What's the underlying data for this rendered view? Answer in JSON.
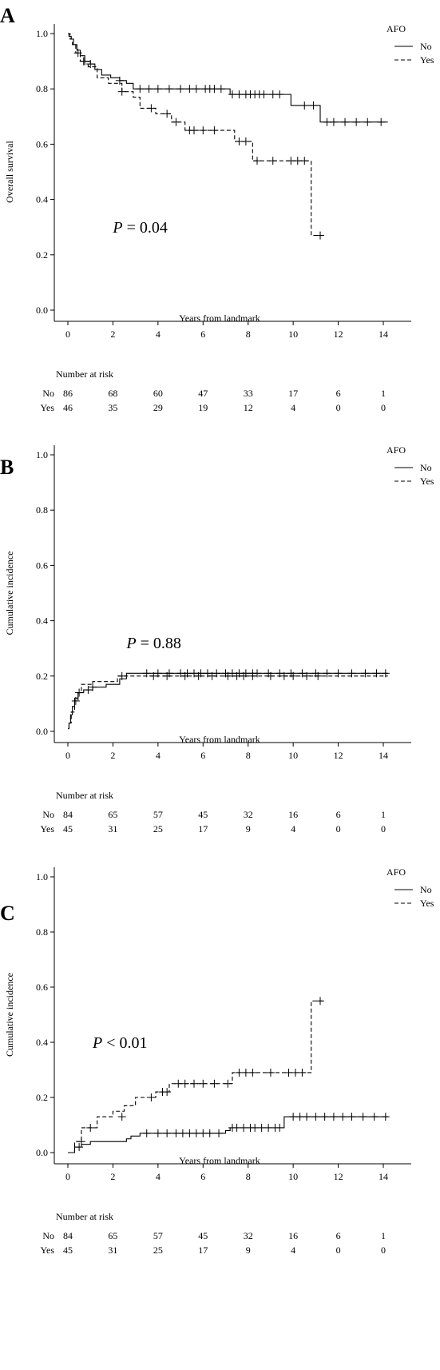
{
  "chart_data": [
    {
      "type": "line",
      "panel_label": "A",
      "ylabel": "Overall survival",
      "xlabel": "Years from landmark",
      "xlim": [
        0,
        14
      ],
      "ylim": [
        0,
        1
      ],
      "xticks": [
        "0",
        "2",
        "4",
        "6",
        "8",
        "10",
        "12",
        "14"
      ],
      "yticks": [
        "0.0",
        "0.2",
        "0.4",
        "0.6",
        "0.8",
        "1.0"
      ],
      "legend": {
        "title": "AFO",
        "position": "top-right"
      },
      "p_prefix": "P",
      "p_text": " = 0.04",
      "p_at": [
        2,
        0.28
      ],
      "series": [
        {
          "name": "No",
          "style": "solid",
          "steps": [
            [
              0,
              1.0
            ],
            [
              0.05,
              0.99
            ],
            [
              0.15,
              0.98
            ],
            [
              0.25,
              0.96
            ],
            [
              0.4,
              0.94
            ],
            [
              0.55,
              0.92
            ],
            [
              0.75,
              0.9
            ],
            [
              1.0,
              0.89
            ],
            [
              1.2,
              0.87
            ],
            [
              1.5,
              0.85
            ],
            [
              1.9,
              0.84
            ],
            [
              2.3,
              0.83
            ],
            [
              2.6,
              0.82
            ],
            [
              2.9,
              0.8
            ],
            [
              7.2,
              0.78
            ],
            [
              9.9,
              0.74
            ],
            [
              11.2,
              0.68
            ],
            [
              14.2,
              0.68
            ]
          ],
          "censors": [
            [
              0.7,
              0.9
            ],
            [
              1.0,
              0.89
            ],
            [
              2.3,
              0.83
            ],
            [
              3.2,
              0.8
            ],
            [
              3.6,
              0.8
            ],
            [
              4.0,
              0.8
            ],
            [
              4.5,
              0.8
            ],
            [
              5.0,
              0.8
            ],
            [
              5.4,
              0.8
            ],
            [
              5.7,
              0.8
            ],
            [
              6.1,
              0.8
            ],
            [
              6.3,
              0.8
            ],
            [
              6.5,
              0.8
            ],
            [
              6.8,
              0.8
            ],
            [
              7.3,
              0.78
            ],
            [
              7.6,
              0.78
            ],
            [
              7.9,
              0.78
            ],
            [
              8.1,
              0.78
            ],
            [
              8.3,
              0.78
            ],
            [
              8.5,
              0.78
            ],
            [
              8.7,
              0.78
            ],
            [
              9.1,
              0.78
            ],
            [
              9.4,
              0.78
            ],
            [
              10.5,
              0.74
            ],
            [
              10.9,
              0.74
            ],
            [
              11.5,
              0.68
            ],
            [
              11.8,
              0.68
            ],
            [
              12.3,
              0.68
            ],
            [
              12.8,
              0.68
            ],
            [
              13.3,
              0.68
            ],
            [
              13.9,
              0.68
            ]
          ]
        },
        {
          "name": "Yes",
          "style": "dashed",
          "steps": [
            [
              0,
              1.0
            ],
            [
              0.1,
              0.98
            ],
            [
              0.2,
              0.96
            ],
            [
              0.35,
              0.93
            ],
            [
              0.55,
              0.9
            ],
            [
              0.9,
              0.88
            ],
            [
              1.3,
              0.84
            ],
            [
              1.8,
              0.82
            ],
            [
              2.4,
              0.79
            ],
            [
              2.9,
              0.77
            ],
            [
              3.2,
              0.73
            ],
            [
              3.9,
              0.71
            ],
            [
              4.6,
              0.68
            ],
            [
              5.2,
              0.65
            ],
            [
              7.4,
              0.61
            ],
            [
              8.2,
              0.54
            ],
            [
              10.8,
              0.27
            ],
            [
              11.3,
              0.27
            ]
          ],
          "censors": [
            [
              0.45,
              0.93
            ],
            [
              0.75,
              0.9
            ],
            [
              2.4,
              0.79
            ],
            [
              3.7,
              0.73
            ],
            [
              4.4,
              0.71
            ],
            [
              4.8,
              0.68
            ],
            [
              5.4,
              0.65
            ],
            [
              5.6,
              0.65
            ],
            [
              6.0,
              0.65
            ],
            [
              6.5,
              0.65
            ],
            [
              7.6,
              0.61
            ],
            [
              7.9,
              0.61
            ],
            [
              8.4,
              0.54
            ],
            [
              9.1,
              0.54
            ],
            [
              9.9,
              0.54
            ],
            [
              10.2,
              0.54
            ],
            [
              10.5,
              0.54
            ],
            [
              11.2,
              0.27
            ]
          ]
        }
      ],
      "risk_table": {
        "title": "Number at risk",
        "rows": [
          {
            "group": "No",
            "counts": [
              "86",
              "68",
              "60",
              "47",
              "33",
              "17",
              "6",
              "1"
            ]
          },
          {
            "group": "Yes",
            "counts": [
              "46",
              "35",
              "29",
              "19",
              "12",
              "4",
              "0",
              "0"
            ]
          }
        ]
      }
    },
    {
      "type": "line",
      "panel_label": "B",
      "ylabel": "Cumulative incidence",
      "xlabel": "Years from landmark",
      "xlim": [
        0,
        14
      ],
      "ylim": [
        0,
        1
      ],
      "xticks": [
        "0",
        "2",
        "4",
        "6",
        "8",
        "10",
        "12",
        "14"
      ],
      "yticks": [
        "0.0",
        "0.2",
        "0.4",
        "0.6",
        "0.8",
        "1.0"
      ],
      "legend": {
        "title": "AFO",
        "position": "top-right"
      },
      "p_prefix": "P",
      "p_text": " = 0.88",
      "p_at": [
        2.6,
        0.3
      ],
      "series": [
        {
          "name": "No",
          "style": "solid",
          "steps": [
            [
              0,
              0.01
            ],
            [
              0.05,
              0.03
            ],
            [
              0.12,
              0.06
            ],
            [
              0.2,
              0.09
            ],
            [
              0.3,
              0.12
            ],
            [
              0.45,
              0.14
            ],
            [
              0.7,
              0.15
            ],
            [
              1.1,
              0.16
            ],
            [
              1.7,
              0.17
            ],
            [
              2.3,
              0.19
            ],
            [
              2.6,
              0.21
            ],
            [
              14.2,
              0.21
            ]
          ],
          "censors": [
            [
              0.5,
              0.14
            ],
            [
              0.9,
              0.15
            ],
            [
              1.1,
              0.16
            ],
            [
              3.5,
              0.21
            ],
            [
              4.0,
              0.21
            ],
            [
              4.5,
              0.21
            ],
            [
              5.0,
              0.21
            ],
            [
              5.3,
              0.21
            ],
            [
              5.6,
              0.21
            ],
            [
              5.9,
              0.21
            ],
            [
              6.2,
              0.21
            ],
            [
              6.6,
              0.21
            ],
            [
              7.0,
              0.21
            ],
            [
              7.3,
              0.21
            ],
            [
              7.6,
              0.21
            ],
            [
              7.9,
              0.21
            ],
            [
              8.2,
              0.21
            ],
            [
              8.4,
              0.21
            ],
            [
              8.9,
              0.21
            ],
            [
              9.4,
              0.21
            ],
            [
              9.9,
              0.21
            ],
            [
              10.4,
              0.21
            ],
            [
              11.0,
              0.21
            ],
            [
              11.5,
              0.21
            ],
            [
              12.0,
              0.21
            ],
            [
              12.6,
              0.21
            ],
            [
              13.2,
              0.21
            ],
            [
              13.7,
              0.21
            ],
            [
              14.1,
              0.21
            ]
          ]
        },
        {
          "name": "Yes",
          "style": "dashed",
          "steps": [
            [
              0,
              0.01
            ],
            [
              0.05,
              0.03
            ],
            [
              0.15,
              0.07
            ],
            [
              0.3,
              0.11
            ],
            [
              0.45,
              0.14
            ],
            [
              0.6,
              0.17
            ],
            [
              1.1,
              0.18
            ],
            [
              2.2,
              0.2
            ],
            [
              14.2,
              0.2
            ]
          ],
          "censors": [
            [
              0.35,
              0.11
            ],
            [
              2.4,
              0.2
            ],
            [
              3.8,
              0.2
            ],
            [
              4.4,
              0.2
            ],
            [
              5.2,
              0.2
            ],
            [
              5.8,
              0.2
            ],
            [
              6.4,
              0.2
            ],
            [
              7.1,
              0.2
            ],
            [
              7.5,
              0.2
            ],
            [
              7.8,
              0.2
            ],
            [
              8.2,
              0.2
            ],
            [
              9.0,
              0.2
            ],
            [
              9.6,
              0.2
            ],
            [
              10.0,
              0.2
            ],
            [
              10.6,
              0.2
            ],
            [
              11.1,
              0.2
            ]
          ]
        }
      ],
      "risk_table": {
        "title": "Number at risk",
        "rows": [
          {
            "group": "No",
            "counts": [
              "84",
              "65",
              "57",
              "45",
              "32",
              "16",
              "6",
              "1"
            ]
          },
          {
            "group": "Yes",
            "counts": [
              "45",
              "31",
              "25",
              "17",
              "9",
              "4",
              "0",
              "0"
            ]
          }
        ]
      }
    },
    {
      "type": "line",
      "panel_label": "C",
      "ylabel": "Cumulative incidence",
      "xlabel": "Years from landmark",
      "xlim": [
        0,
        14
      ],
      "ylim": [
        0,
        1
      ],
      "xticks": [
        "0",
        "2",
        "4",
        "6",
        "8",
        "10",
        "12",
        "14"
      ],
      "yticks": [
        "0.0",
        "0.2",
        "0.4",
        "0.6",
        "0.8",
        "1.0"
      ],
      "legend": {
        "title": "AFO",
        "position": "top-right"
      },
      "p_prefix": "P",
      "p_text": " < 0.01",
      "p_at": [
        1.1,
        0.38
      ],
      "series": [
        {
          "name": "No",
          "style": "solid",
          "steps": [
            [
              0,
              0.0
            ],
            [
              0.3,
              0.02
            ],
            [
              0.6,
              0.03
            ],
            [
              1.0,
              0.04
            ],
            [
              2.6,
              0.05
            ],
            [
              2.8,
              0.06
            ],
            [
              3.2,
              0.07
            ],
            [
              7.0,
              0.08
            ],
            [
              7.2,
              0.09
            ],
            [
              9.6,
              0.13
            ],
            [
              14.2,
              0.13
            ]
          ],
          "censors": [
            [
              0.5,
              0.02
            ],
            [
              3.5,
              0.07
            ],
            [
              4.0,
              0.07
            ],
            [
              4.4,
              0.07
            ],
            [
              4.8,
              0.07
            ],
            [
              5.1,
              0.07
            ],
            [
              5.4,
              0.07
            ],
            [
              5.7,
              0.07
            ],
            [
              6.0,
              0.07
            ],
            [
              6.3,
              0.07
            ],
            [
              6.7,
              0.07
            ],
            [
              7.3,
              0.09
            ],
            [
              7.5,
              0.09
            ],
            [
              7.8,
              0.09
            ],
            [
              8.1,
              0.09
            ],
            [
              8.3,
              0.09
            ],
            [
              8.6,
              0.09
            ],
            [
              8.9,
              0.09
            ],
            [
              9.2,
              0.09
            ],
            [
              9.4,
              0.09
            ],
            [
              10.0,
              0.13
            ],
            [
              10.3,
              0.13
            ],
            [
              10.6,
              0.13
            ],
            [
              11.0,
              0.13
            ],
            [
              11.4,
              0.13
            ],
            [
              11.8,
              0.13
            ],
            [
              12.2,
              0.13
            ],
            [
              12.6,
              0.13
            ],
            [
              13.1,
              0.13
            ],
            [
              13.6,
              0.13
            ],
            [
              14.1,
              0.13
            ]
          ]
        },
        {
          "name": "Yes",
          "style": "dashed",
          "steps": [
            [
              0,
              0.0
            ],
            [
              0.3,
              0.04
            ],
            [
              0.6,
              0.09
            ],
            [
              1.3,
              0.13
            ],
            [
              2.0,
              0.15
            ],
            [
              2.5,
              0.17
            ],
            [
              3.0,
              0.2
            ],
            [
              3.9,
              0.22
            ],
            [
              4.5,
              0.25
            ],
            [
              7.3,
              0.29
            ],
            [
              10.8,
              0.55
            ],
            [
              11.3,
              0.55
            ]
          ],
          "censors": [
            [
              0.6,
              0.04
            ],
            [
              1.0,
              0.09
            ],
            [
              2.4,
              0.13
            ],
            [
              3.7,
              0.2
            ],
            [
              4.2,
              0.22
            ],
            [
              4.4,
              0.22
            ],
            [
              4.9,
              0.25
            ],
            [
              5.2,
              0.25
            ],
            [
              5.6,
              0.25
            ],
            [
              6.0,
              0.25
            ],
            [
              6.5,
              0.25
            ],
            [
              7.1,
              0.25
            ],
            [
              7.6,
              0.29
            ],
            [
              7.9,
              0.29
            ],
            [
              8.2,
              0.29
            ],
            [
              9.0,
              0.29
            ],
            [
              9.8,
              0.29
            ],
            [
              10.1,
              0.29
            ],
            [
              10.4,
              0.29
            ],
            [
              11.2,
              0.55
            ]
          ]
        }
      ],
      "risk_table": {
        "title": "Number at risk",
        "rows": [
          {
            "group": "No",
            "counts": [
              "84",
              "65",
              "57",
              "45",
              "32",
              "16",
              "6",
              "1"
            ]
          },
          {
            "group": "Yes",
            "counts": [
              "45",
              "31",
              "25",
              "17",
              "9",
              "4",
              "0",
              "0"
            ]
          }
        ]
      }
    }
  ]
}
